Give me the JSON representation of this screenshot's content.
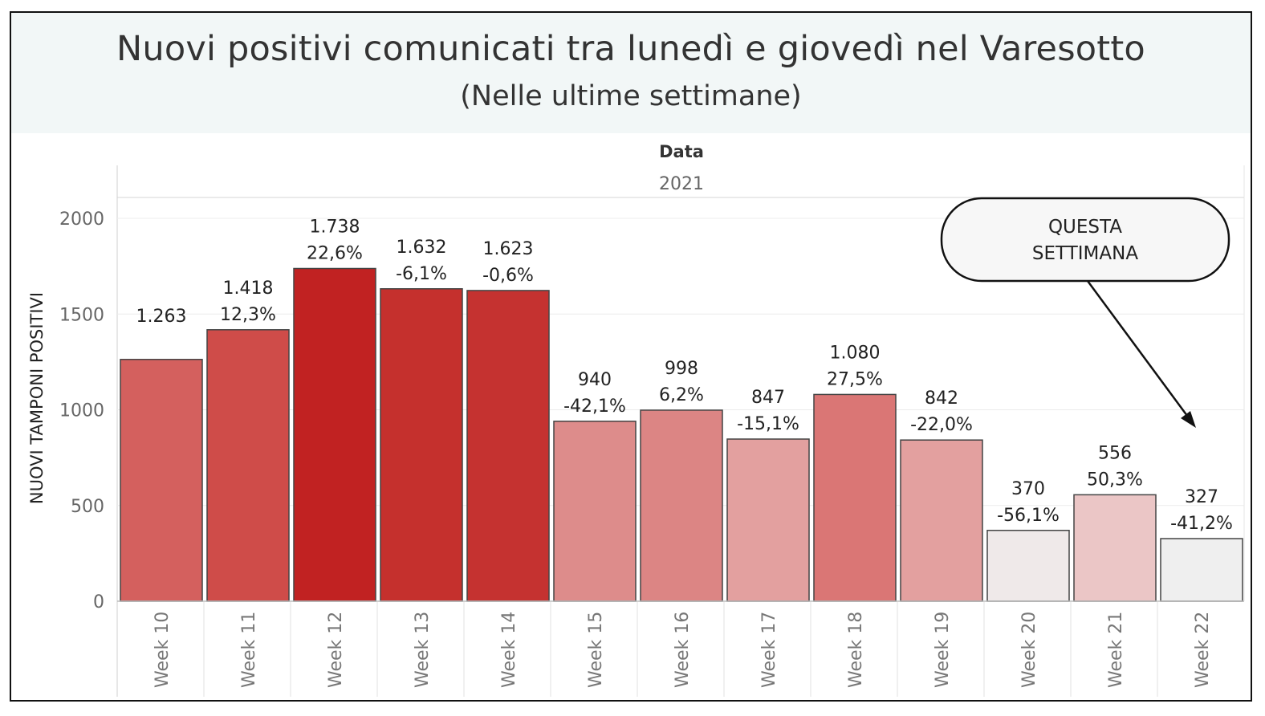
{
  "title": "Nuovi positivi comunicati tra lunedì e giovedì nel Varesotto",
  "subtitle": "(Nelle ultime settimane)",
  "annotation": {
    "text_line1": "QUESTA",
    "text_line2": "SETTIMANA"
  },
  "chart_data": {
    "type": "bar",
    "column_header": "Data",
    "column_year": "2021",
    "ylabel": "NUOVI TAMPONI POSITIVI",
    "ylim": [
      0,
      2150
    ],
    "yticks": [
      0,
      500,
      1000,
      1500,
      2000
    ],
    "grid": true,
    "categories": [
      "Week 10",
      "Week 11",
      "Week 12",
      "Week 13",
      "Week 14",
      "Week 15",
      "Week 16",
      "Week 17",
      "Week 18",
      "Week 19",
      "Week 20",
      "Week 21",
      "Week 22"
    ],
    "values": [
      1263,
      1418,
      1738,
      1632,
      1623,
      940,
      998,
      847,
      1080,
      842,
      370,
      556,
      327
    ],
    "value_labels": [
      "1.263",
      "1.418",
      "1.738",
      "1.632",
      "1.623",
      "940",
      "998",
      "847",
      "1.080",
      "842",
      "370",
      "556",
      "327"
    ],
    "pct_labels": [
      "",
      "12,3%",
      "22,6%",
      "-6,1%",
      "-0,6%",
      "-42,1%",
      "6,2%",
      "-15,1%",
      "27,5%",
      "-22,0%",
      "-56,1%",
      "50,3%",
      "-41,2%"
    ],
    "pct_values": [
      null,
      12.3,
      22.6,
      -6.1,
      -0.6,
      -42.1,
      6.2,
      -15.1,
      27.5,
      -22.0,
      -56.1,
      50.3,
      -41.2
    ],
    "bar_colors": [
      "#d4605e",
      "#cf4c49",
      "#c12222",
      "#c5302d",
      "#c53230",
      "#dd8c8b",
      "#dc8584",
      "#e3a09f",
      "#da7675",
      "#e3a09f",
      "#efe9e9",
      "#ebc6c6",
      "#efefef"
    ]
  }
}
